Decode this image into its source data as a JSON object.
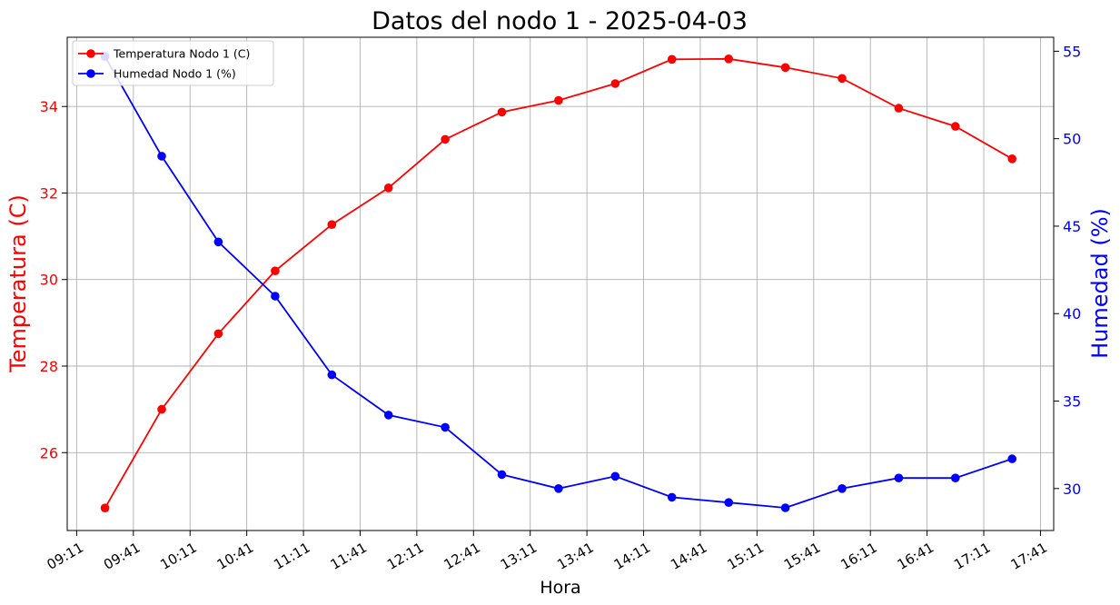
{
  "chart_data": {
    "type": "line",
    "title": "Datos del nodo 1 - 2025-04-03",
    "xlabel": "Hora",
    "x": [
      "09:26",
      "09:56",
      "10:26",
      "10:56",
      "11:26",
      "11:56",
      "12:26",
      "12:56",
      "13:26",
      "13:56",
      "14:26",
      "14:56",
      "15:26",
      "15:56",
      "16:26",
      "16:56",
      "17:26"
    ],
    "x_ticks": [
      "09:11",
      "09:41",
      "10:11",
      "10:41",
      "11:11",
      "11:41",
      "12:11",
      "12:41",
      "13:11",
      "13:41",
      "14:11",
      "14:41",
      "15:11",
      "15:41",
      "16:11",
      "16:41",
      "17:11",
      "17:41"
    ],
    "x_range": [
      "09:06",
      "17:48"
    ],
    "grid": true,
    "legend_position": "top-left",
    "left_axis": {
      "label": "Temperatura (C)",
      "color": "#ff0000",
      "range": [
        24.2,
        35.6
      ],
      "ticks": [
        "26",
        "28",
        "30",
        "32",
        "34"
      ]
    },
    "right_axis": {
      "label": "Humedad (%)",
      "color": "#0000ff",
      "range": [
        27.6,
        55.8
      ],
      "ticks": [
        "30",
        "35",
        "40",
        "45",
        "50",
        "55"
      ]
    },
    "series": [
      {
        "name": "Temperatura Nodo 1 (C)",
        "axis": "left",
        "color": "#ff0000",
        "values": [
          24.72,
          27.0,
          28.75,
          30.2,
          31.27,
          32.12,
          33.24,
          33.87,
          34.14,
          34.53,
          35.09,
          35.1,
          34.9,
          34.65,
          33.96,
          33.54,
          32.79
        ]
      },
      {
        "name": "Humedad Nodo 1 (%)",
        "axis": "right",
        "color": "#0000ff",
        "values": [
          54.7,
          49.0,
          44.1,
          41.0,
          36.5,
          34.2,
          33.5,
          30.8,
          30.0,
          30.7,
          29.5,
          29.2,
          28.9,
          30.0,
          30.6,
          30.6,
          31.7
        ]
      }
    ]
  }
}
